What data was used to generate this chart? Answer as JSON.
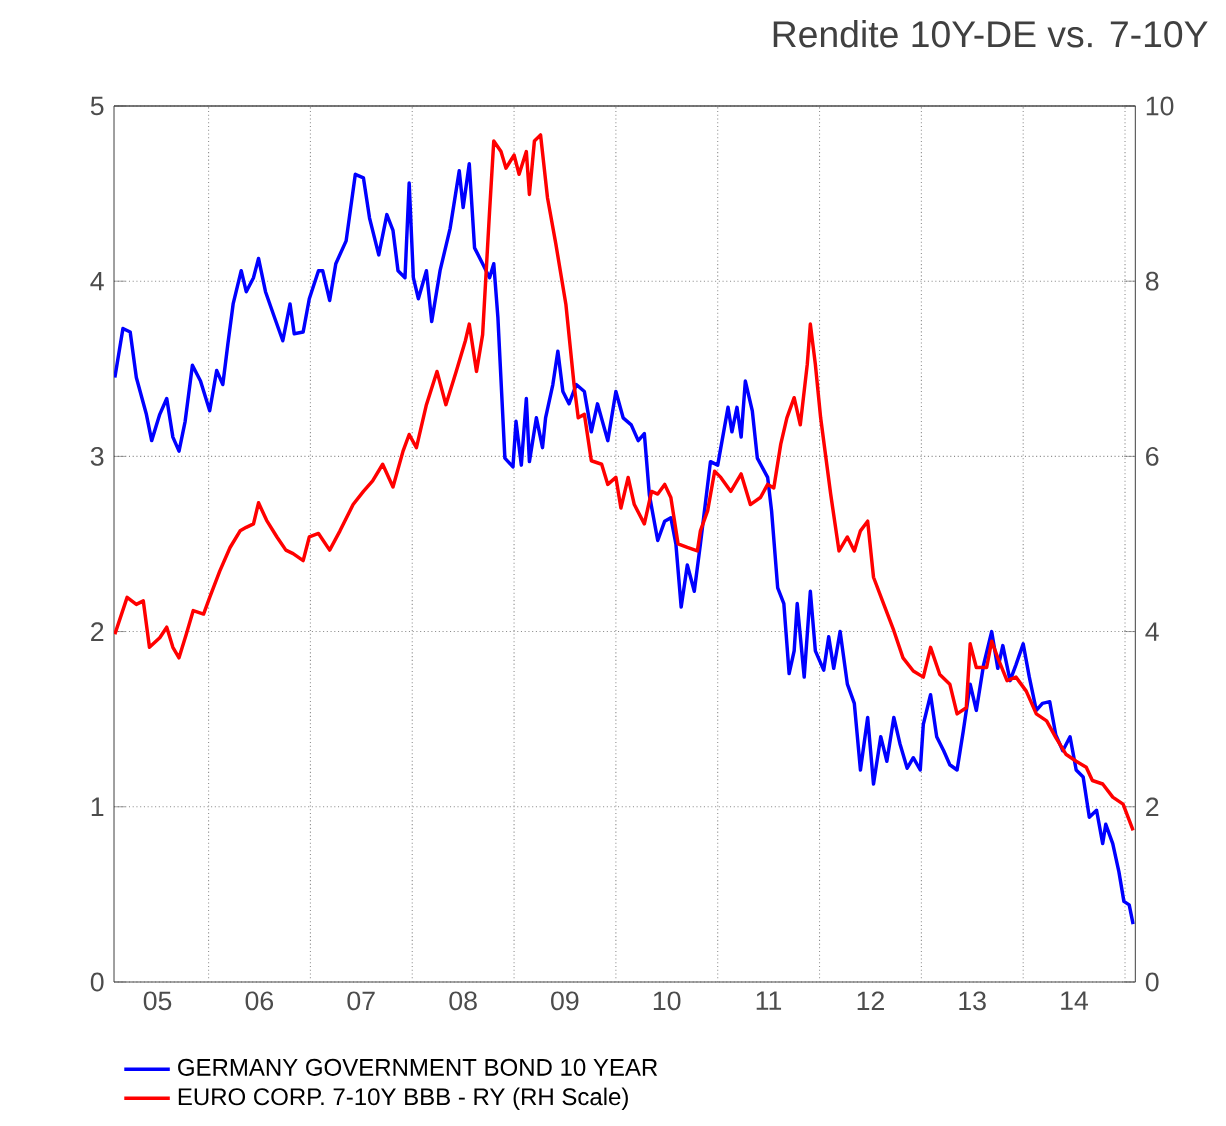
{
  "chart_data": {
    "type": "line",
    "title": "Rendite 10Y-DE vs. 7-10Y",
    "xlim": [
      "2005-01-27",
      "2015-02-07"
    ],
    "xticks": [
      {
        "value": "2005-07-02",
        "label": "05"
      },
      {
        "value": "2006-07-02",
        "label": "06"
      },
      {
        "value": "2007-07-02",
        "label": "07"
      },
      {
        "value": "2008-07-02",
        "label": "08"
      },
      {
        "value": "2009-07-02",
        "label": "09"
      },
      {
        "value": "2010-07-02",
        "label": "10"
      },
      {
        "value": "2011-07-02",
        "label": "11"
      },
      {
        "value": "2012-07-02",
        "label": "12"
      },
      {
        "value": "2013-07-02",
        "label": "13"
      },
      {
        "value": "2014-07-02",
        "label": "14"
      },
      {
        "value": "2006-01-01",
        "label": null
      },
      {
        "value": "2007-01-01",
        "label": null
      },
      {
        "value": "2008-01-01",
        "label": null
      },
      {
        "value": "2009-01-01",
        "label": null
      },
      {
        "value": "2010-01-01",
        "label": null
      },
      {
        "value": "2011-01-01",
        "label": null
      },
      {
        "value": "2012-01-01",
        "label": null
      },
      {
        "value": "2013-01-01",
        "label": null
      },
      {
        "value": "2014-01-01",
        "label": null
      },
      {
        "value": "2015-01-01",
        "label": null
      }
    ],
    "ylim": [
      0,
      5
    ],
    "yticks": [
      0,
      1,
      2,
      3,
      4,
      5
    ],
    "y2lim": [
      0,
      10
    ],
    "y2ticks": [
      0,
      2,
      4,
      6,
      8,
      10
    ],
    "grid": true,
    "legend": "bottom",
    "series": [
      {
        "name": "GERMANY GOVERNMENT BOND 10 YEAR",
        "color": "#0000ff",
        "axis": "y",
        "x": [
          "2005-01-30",
          "2005-02-28",
          "2005-03-26",
          "2005-04-17",
          "2005-05-23",
          "2005-06-11",
          "2005-07-10",
          "2005-08-04",
          "2005-08-26",
          "2005-09-17",
          "2005-10-09",
          "2005-11-04",
          "2005-12-03",
          "2006-01-05",
          "2006-01-30",
          "2006-02-21",
          "2006-03-11",
          "2006-03-30",
          "2006-04-28",
          "2006-05-16",
          "2006-06-11",
          "2006-06-29",
          "2006-07-24",
          "2006-08-26",
          "2006-09-24",
          "2006-10-20",
          "2006-11-04",
          "2006-12-06",
          "2006-12-28",
          "2007-01-30",
          "2007-02-14",
          "2007-03-11",
          "2007-04-02",
          "2007-05-09",
          "2007-06-11",
          "2007-07-10",
          "2007-08-01",
          "2007-09-03",
          "2007-10-02",
          "2007-10-24",
          "2007-11-11",
          "2007-12-06",
          "2007-12-21",
          "2008-01-05",
          "2008-01-23",
          "2008-02-21",
          "2008-03-11",
          "2008-04-10",
          "2008-05-16",
          "2008-06-18",
          "2008-07-02",
          "2008-07-24",
          "2008-08-12",
          "2008-09-10",
          "2008-10-05",
          "2008-10-20",
          "2008-11-04",
          "2008-11-29",
          "2008-12-28",
          "2009-01-08",
          "2009-01-27",
          "2009-02-14",
          "2009-02-25",
          "2009-03-22",
          "2009-04-13",
          "2009-04-24",
          "2009-05-20",
          "2009-06-07",
          "2009-06-25",
          "2009-07-17",
          "2009-08-12",
          "2009-09-10",
          "2009-10-05",
          "2009-10-27",
          "2009-12-03",
          "2010-01-01",
          "2010-01-27",
          "2010-02-25",
          "2010-03-22",
          "2010-04-13",
          "2010-05-01",
          "2010-05-31",
          "2010-06-25",
          "2010-07-17",
          "2010-08-04",
          "2010-08-23",
          "2010-09-14",
          "2010-10-09",
          "2010-10-31",
          "2010-12-06",
          "2011-01-01",
          "2011-02-07",
          "2011-02-21",
          "2011-03-11",
          "2011-03-26",
          "2011-04-10",
          "2011-05-05",
          "2011-05-23",
          "2011-06-29",
          "2011-07-13",
          "2011-08-04",
          "2011-08-26",
          "2011-09-14",
          "2011-10-02",
          "2011-10-13",
          "2011-11-07",
          "2011-11-29",
          "2011-12-17",
          "2012-01-16",
          "2012-02-03",
          "2012-02-21",
          "2012-03-15",
          "2012-04-10",
          "2012-05-05",
          "2012-05-27",
          "2012-06-22",
          "2012-07-13",
          "2012-08-08",
          "2012-08-30",
          "2012-09-24",
          "2012-10-16",
          "2012-11-11",
          "2012-12-03",
          "2012-12-28",
          "2013-01-08",
          "2013-02-03",
          "2013-02-25",
          "2013-03-22",
          "2013-04-13",
          "2013-05-09",
          "2013-05-31",
          "2013-06-25",
          "2013-07-17",
          "2013-08-12",
          "2013-09-10",
          "2013-10-02",
          "2013-10-20",
          "2013-11-15",
          "2013-12-06",
          "2014-01-01",
          "2014-01-23",
          "2014-02-17",
          "2014-03-11",
          "2014-04-06",
          "2014-04-28",
          "2014-05-23",
          "2014-06-18",
          "2014-07-10",
          "2014-08-04",
          "2014-08-26",
          "2014-09-21",
          "2014-10-13",
          "2014-10-24",
          "2014-11-18",
          "2014-12-10",
          "2014-12-28",
          "2015-01-16",
          "2015-01-30"
        ],
        "values": [
          3.45,
          3.73,
          3.71,
          3.45,
          3.24,
          3.09,
          3.24,
          3.33,
          3.11,
          3.03,
          3.2,
          3.52,
          3.43,
          3.26,
          3.49,
          3.41,
          3.64,
          3.87,
          4.06,
          3.94,
          4.02,
          4.13,
          3.94,
          3.79,
          3.66,
          3.87,
          3.7,
          3.71,
          3.9,
          4.06,
          4.06,
          3.89,
          4.1,
          4.23,
          4.61,
          4.59,
          4.36,
          4.15,
          4.38,
          4.29,
          4.06,
          4.02,
          4.56,
          4.02,
          3.9,
          4.06,
          3.77,
          4.06,
          4.3,
          4.63,
          4.42,
          4.67,
          4.19,
          4.1,
          4.02,
          4.1,
          3.79,
          2.99,
          2.94,
          3.2,
          2.95,
          3.33,
          2.97,
          3.22,
          3.05,
          3.22,
          3.41,
          3.6,
          3.37,
          3.3,
          3.41,
          3.37,
          3.14,
          3.3,
          3.09,
          3.37,
          3.22,
          3.18,
          3.09,
          3.13,
          2.78,
          2.52,
          2.63,
          2.65,
          2.5,
          2.14,
          2.38,
          2.23,
          2.5,
          2.97,
          2.95,
          3.28,
          3.14,
          3.28,
          3.11,
          3.43,
          3.26,
          2.99,
          2.88,
          2.69,
          2.25,
          2.16,
          1.76,
          1.89,
          2.16,
          1.74,
          2.23,
          1.89,
          1.78,
          1.97,
          1.79,
          2.0,
          1.7,
          1.59,
          1.21,
          1.51,
          1.13,
          1.4,
          1.26,
          1.51,
          1.36,
          1.22,
          1.28,
          1.21,
          1.47,
          1.64,
          1.4,
          1.32,
          1.24,
          1.21,
          1.43,
          1.7,
          1.55,
          1.81,
          2.0,
          1.79,
          1.92,
          1.72,
          1.81,
          1.93,
          1.74,
          1.55,
          1.59,
          1.6,
          1.41,
          1.32,
          1.4,
          1.21,
          1.17,
          0.94,
          0.98,
          0.79,
          0.9,
          0.79,
          0.63,
          0.46,
          0.44,
          0.33
        ]
      },
      {
        "name": "EURO CORP. 7-10Y BBB - RY (RH Scale)",
        "color": "#ff0000",
        "axis": "y2",
        "x": [
          "2005-01-30",
          "2005-03-15",
          "2005-04-17",
          "2005-05-12",
          "2005-06-03",
          "2005-07-10",
          "2005-08-04",
          "2005-08-26",
          "2005-09-17",
          "2005-10-13",
          "2005-11-07",
          "2005-12-14",
          "2006-01-05",
          "2006-02-10",
          "2006-03-19",
          "2006-04-24",
          "2006-05-16",
          "2006-06-11",
          "2006-06-29",
          "2006-07-28",
          "2006-09-03",
          "2006-10-05",
          "2006-10-31",
          "2006-12-06",
          "2006-12-28",
          "2007-01-30",
          "2007-03-11",
          "2007-04-17",
          "2007-06-03",
          "2007-07-10",
          "2007-08-12",
          "2007-09-17",
          "2007-10-24",
          "2007-11-29",
          "2007-12-21",
          "2008-01-16",
          "2008-02-21",
          "2008-03-30",
          "2008-05-01",
          "2008-06-07",
          "2008-07-10",
          "2008-07-24",
          "2008-08-19",
          "2008-09-10",
          "2008-10-05",
          "2008-10-20",
          "2008-11-15",
          "2008-12-03",
          "2009-01-01",
          "2009-01-19",
          "2009-02-14",
          "2009-02-25",
          "2009-03-15",
          "2009-04-06",
          "2009-05-01",
          "2009-05-31",
          "2009-07-06",
          "2009-08-04",
          "2009-08-19",
          "2009-09-10",
          "2009-10-05",
          "2009-11-11",
          "2009-12-03",
          "2010-01-01",
          "2010-01-19",
          "2010-02-14",
          "2010-03-08",
          "2010-04-13",
          "2010-05-09",
          "2010-05-31",
          "2010-06-25",
          "2010-07-17",
          "2010-08-12",
          "2010-09-14",
          "2010-10-20",
          "2010-10-31",
          "2010-11-26",
          "2010-12-21",
          "2011-01-12",
          "2011-02-17",
          "2011-03-26",
          "2011-04-28",
          "2011-06-03",
          "2011-06-29",
          "2011-07-21",
          "2011-08-15",
          "2011-09-06",
          "2011-10-02",
          "2011-10-24",
          "2011-11-18",
          "2011-11-29",
          "2011-12-17",
          "2012-01-05",
          "2012-02-10",
          "2012-03-11",
          "2012-04-10",
          "2012-05-05",
          "2012-05-27",
          "2012-06-22",
          "2012-07-13",
          "2012-08-19",
          "2012-09-24",
          "2012-10-27",
          "2012-12-03",
          "2013-01-08",
          "2013-02-03",
          "2013-03-08",
          "2013-04-13",
          "2013-05-09",
          "2013-06-11",
          "2013-06-25",
          "2013-07-17",
          "2013-08-23",
          "2013-09-10",
          "2013-10-02",
          "2013-11-04",
          "2013-12-06",
          "2014-01-12",
          "2014-02-17",
          "2014-03-26",
          "2014-04-28",
          "2014-06-03",
          "2014-07-10",
          "2014-08-15",
          "2014-09-06",
          "2014-10-13",
          "2014-11-18",
          "2014-12-25",
          "2015-01-30"
        ],
        "values": [
          3.97,
          4.39,
          4.31,
          4.35,
          3.82,
          3.93,
          4.05,
          3.82,
          3.7,
          3.97,
          4.24,
          4.2,
          4.39,
          4.69,
          4.96,
          5.15,
          5.19,
          5.23,
          5.47,
          5.27,
          5.08,
          4.93,
          4.89,
          4.81,
          5.08,
          5.12,
          4.93,
          5.15,
          5.45,
          5.6,
          5.72,
          5.91,
          5.65,
          6.06,
          6.25,
          6.1,
          6.59,
          6.97,
          6.59,
          6.97,
          7.32,
          7.51,
          6.97,
          7.39,
          8.8,
          9.6,
          9.48,
          9.29,
          9.44,
          9.22,
          9.48,
          8.99,
          9.6,
          9.67,
          8.95,
          8.42,
          7.73,
          6.82,
          6.44,
          6.48,
          5.95,
          5.91,
          5.68,
          5.76,
          5.41,
          5.76,
          5.45,
          5.23,
          5.6,
          5.57,
          5.68,
          5.53,
          5.0,
          4.96,
          4.92,
          5.15,
          5.38,
          5.83,
          5.76,
          5.6,
          5.8,
          5.45,
          5.53,
          5.68,
          5.64,
          6.14,
          6.44,
          6.67,
          6.36,
          7.05,
          7.51,
          7.05,
          6.44,
          5.57,
          4.92,
          5.08,
          4.92,
          5.15,
          5.26,
          4.62,
          4.31,
          4.01,
          3.7,
          3.55,
          3.48,
          3.82,
          3.51,
          3.4,
          3.06,
          3.13,
          3.86,
          3.59,
          3.59,
          3.89,
          3.7,
          3.44,
          3.48,
          3.32,
          3.06,
          2.98,
          2.79,
          2.6,
          2.52,
          2.45,
          2.3,
          2.26,
          2.11,
          2.03,
          1.73
        ]
      }
    ]
  }
}
